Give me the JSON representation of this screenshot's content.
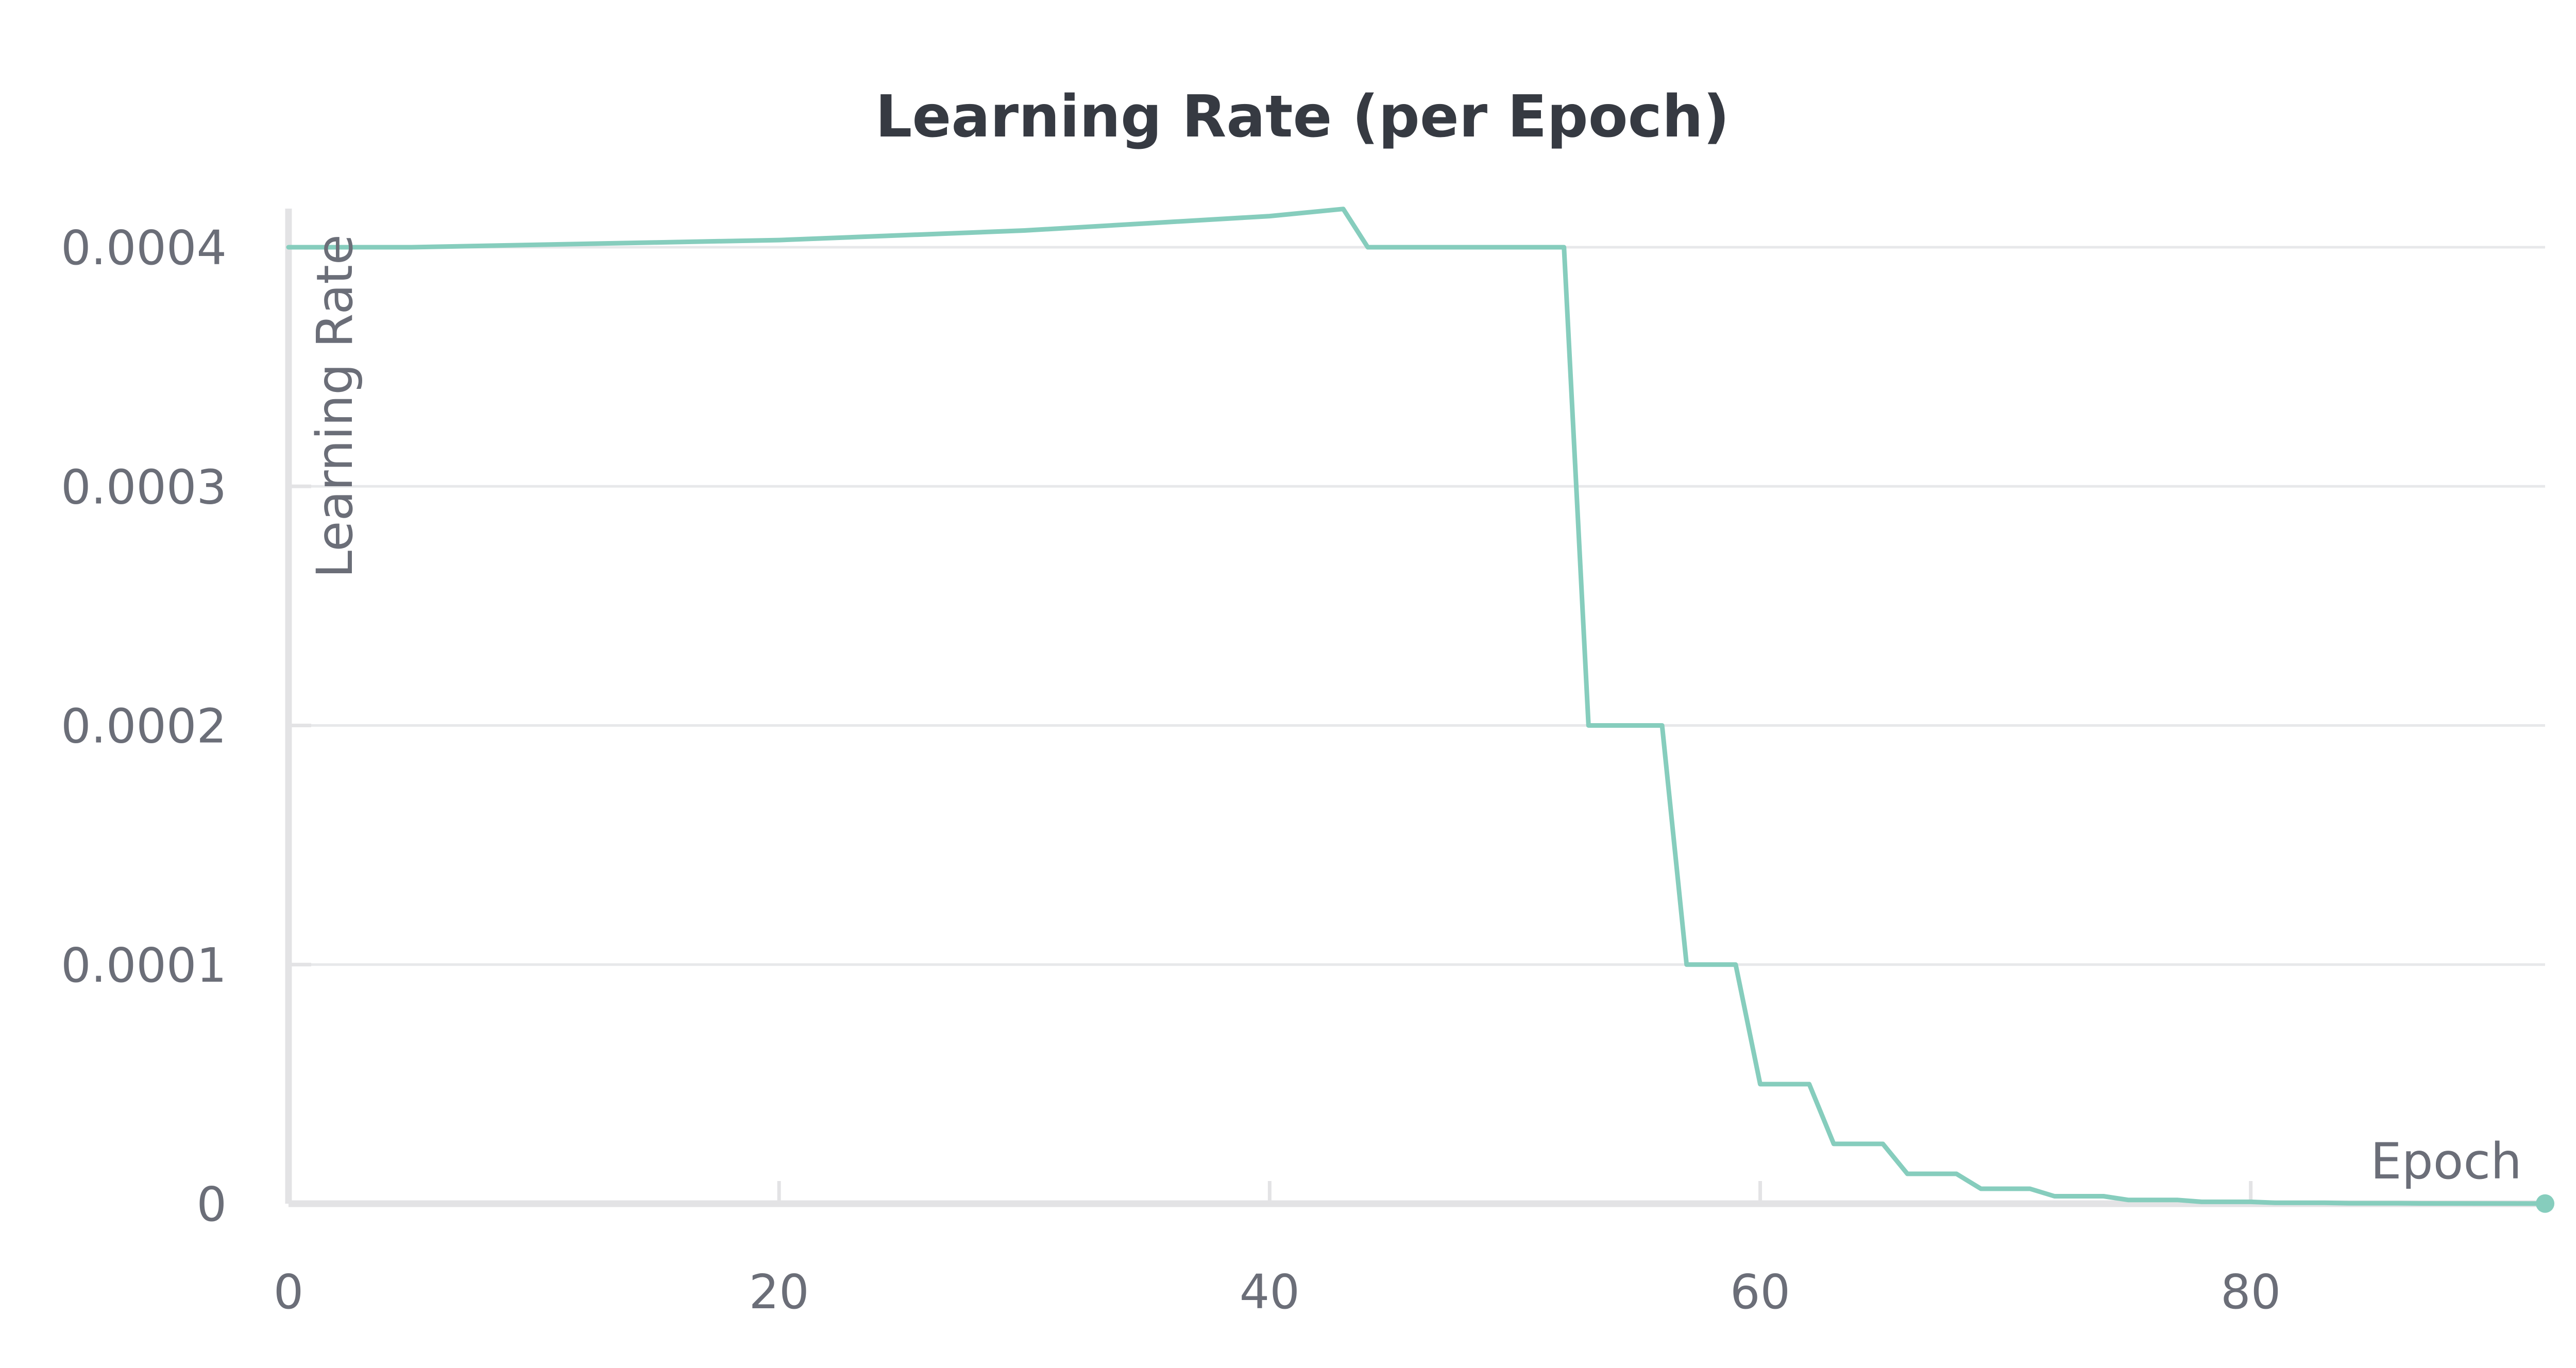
{
  "chart_data": {
    "type": "line",
    "title": "Learning Rate (per Epoch)",
    "xlabel": "Epoch",
    "ylabel": "Learning Rate",
    "xlim": [
      0,
      92
    ],
    "ylim": [
      0,
      0.0004
    ],
    "x_ticks": [
      0,
      20,
      40,
      60,
      80
    ],
    "x_tick_labels": [
      "0",
      "20",
      "40",
      "60",
      "80"
    ],
    "y_ticks": [
      0,
      0.0001,
      0.0002,
      0.0003,
      0.0004
    ],
    "y_tick_labels": [
      "0",
      "0.0001",
      "0.0002",
      "0.0003",
      "0.0004"
    ],
    "grid": true,
    "series": [
      {
        "color": "#86cdbd",
        "points": [
          [
            0,
            0.0004
          ],
          [
            5,
            0.0004
          ],
          [
            10,
            0.000401
          ],
          [
            15,
            0.000402
          ],
          [
            20,
            0.000403
          ],
          [
            25,
            0.000405
          ],
          [
            30,
            0.000407
          ],
          [
            35,
            0.00041
          ],
          [
            40,
            0.000413
          ],
          [
            43,
            0.000416
          ],
          [
            44,
            0.0004
          ],
          [
            48,
            0.0004
          ],
          [
            52,
            0.0004
          ],
          [
            53,
            0.0002
          ],
          [
            56,
            0.0002
          ],
          [
            57,
            0.0001
          ],
          [
            59,
            0.0001
          ],
          [
            60,
            5e-05
          ],
          [
            62,
            5e-05
          ],
          [
            63,
            2.5e-05
          ],
          [
            65,
            2.5e-05
          ],
          [
            66,
            1.25e-05
          ],
          [
            68,
            1.25e-05
          ],
          [
            69,
            6.25e-06
          ],
          [
            71,
            6.25e-06
          ],
          [
            72,
            3.125e-06
          ],
          [
            74,
            3.125e-06
          ],
          [
            75,
            1.5625e-06
          ],
          [
            77,
            1.5625e-06
          ],
          [
            78,
            7.8e-07
          ],
          [
            80,
            7.8e-07
          ],
          [
            81,
            3.9e-07
          ],
          [
            83,
            3.9e-07
          ],
          [
            84,
            2e-07
          ],
          [
            86,
            2e-07
          ],
          [
            87,
            1e-07
          ],
          [
            92,
            5e-08
          ]
        ]
      }
    ]
  }
}
